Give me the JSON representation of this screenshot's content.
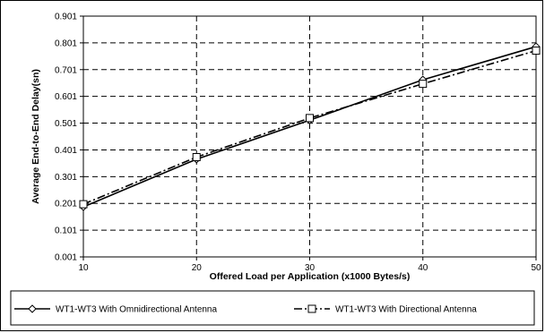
{
  "chart_data": {
    "type": "line",
    "xlabel": "Offered Load per Application (x1000 Bytes/s)",
    "ylabel": "Average End-to-End Delay(sn)",
    "x": [
      10,
      20,
      30,
      40,
      50
    ],
    "xlim": [
      10,
      50
    ],
    "ylim": [
      0.001,
      0.901
    ],
    "x_ticks": [
      "10",
      "20",
      "30",
      "40",
      "50"
    ],
    "y_ticks": [
      "0.001",
      "0.101",
      "0.201",
      "0.301",
      "0.401",
      "0.501",
      "0.601",
      "0.701",
      "0.801",
      "0.901"
    ],
    "grid": true,
    "legend_position": "bottom",
    "series": [
      {
        "name": "WT1-WT3 With Omnidirectional Antenna",
        "values": [
          0.188,
          0.366,
          0.512,
          0.663,
          0.787
        ],
        "line_style": "solid",
        "marker": "diamond",
        "color": "#000000"
      },
      {
        "name": "WT1-WT3 With Directional Antenna",
        "values": [
          0.198,
          0.374,
          0.52,
          0.648,
          0.772
        ],
        "line_style": "dash-dot",
        "marker": "square",
        "color": "#000000"
      }
    ]
  }
}
